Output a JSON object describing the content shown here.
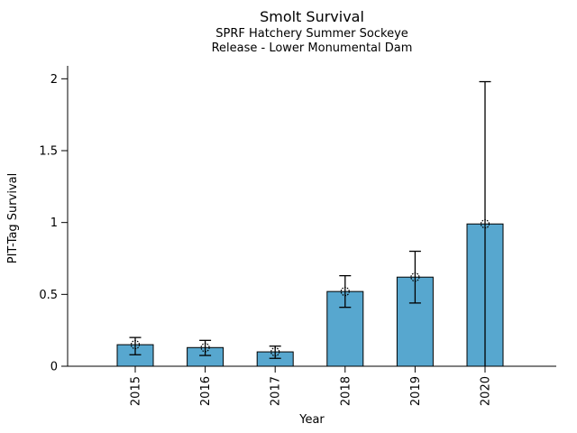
{
  "figure": {
    "background": "#ffffff",
    "title": "Smolt Survival",
    "subtitle_line1": "SPRF Hatchery Summer Sockeye",
    "subtitle_line2": "Release - Lower Monumental Dam"
  },
  "chart_data": {
    "type": "bar",
    "title": "Smolt Survival",
    "subtitle": [
      "SPRF Hatchery Summer Sockeye",
      "Release - Lower Monumental Dam"
    ],
    "xlabel": "Year",
    "ylabel": "PIT-Tag Survival",
    "categories": [
      "2015",
      "2016",
      "2017",
      "2018",
      "2019",
      "2020"
    ],
    "values": [
      0.15,
      0.13,
      0.1,
      0.52,
      0.62,
      0.99
    ],
    "error_low": [
      0.08,
      0.075,
      0.055,
      0.41,
      0.44,
      0.0
    ],
    "error_high": [
      0.2,
      0.18,
      0.14,
      0.63,
      0.8,
      1.98
    ],
    "yticks": [
      0,
      0.5,
      1,
      1.5,
      2
    ],
    "ytick_labels": [
      "0",
      "0.5",
      "1",
      "1.5",
      "2"
    ],
    "ylim": [
      0,
      2.09
    ],
    "x_tick_rotation": 90,
    "grid": false,
    "legend": "none",
    "marker": "open-circle-dashed",
    "colors": {
      "bar_fill": "#57A7CF",
      "bar_edge": "#000000",
      "error_bar": "#000000",
      "axis": "#000000",
      "text": "#000000"
    }
  }
}
